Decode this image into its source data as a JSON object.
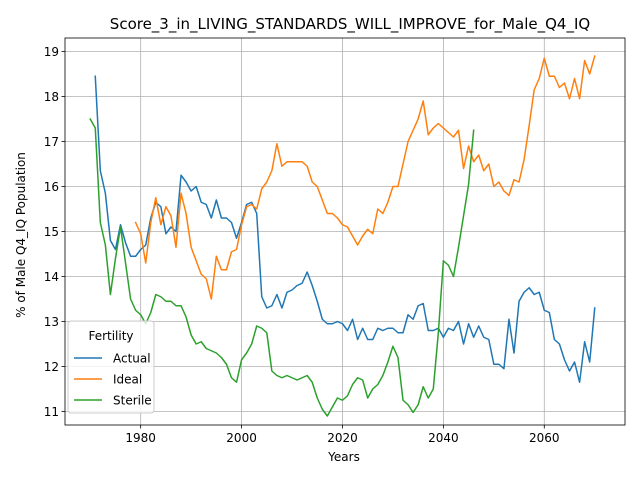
{
  "chart_data": {
    "type": "line",
    "title": "Score_3_in_LIVING_STANDARDS_WILL_IMPROVE_for_Male_Q4_IQ",
    "xlabel": "Years",
    "ylabel": "% of Male Q4_IQ Population",
    "xlim": [
      1965,
      2076
    ],
    "ylim": [
      10.7,
      19.3
    ],
    "xticks": [
      1980,
      2000,
      2020,
      2040,
      2060
    ],
    "yticks": [
      11,
      12,
      13,
      14,
      15,
      16,
      17,
      18,
      19
    ],
    "grid": true,
    "legend": {
      "title": "Fertility",
      "placement": "lower-left"
    },
    "series": [
      {
        "name": "Actual",
        "color": "#1f77b4",
        "x": [
          1971,
          1972,
          1973,
          1974,
          1975,
          1976,
          1977,
          1978,
          1979,
          1980,
          1981,
          1982,
          1983,
          1984,
          1985,
          1986,
          1987,
          1988,
          1989,
          1990,
          1991,
          1992,
          1993,
          1994,
          1995,
          1996,
          1997,
          1998,
          1999,
          2000,
          2001,
          2002,
          2003,
          2004,
          2005,
          2006,
          2007,
          2008,
          2009,
          2010,
          2011,
          2012,
          2013,
          2014,
          2015,
          2016,
          2017,
          2018,
          2019,
          2020,
          2021,
          2022,
          2023,
          2024,
          2025,
          2026,
          2027,
          2028,
          2029,
          2030,
          2031,
          2032,
          2033,
          2034,
          2035,
          2036,
          2037,
          2038,
          2039,
          2040,
          2041,
          2042,
          2043,
          2044,
          2045,
          2046,
          2047,
          2048,
          2049,
          2050,
          2051,
          2052,
          2053,
          2054,
          2055,
          2056,
          2057,
          2058,
          2059,
          2060,
          2061,
          2062,
          2063,
          2064,
          2065,
          2066,
          2067,
          2068,
          2069,
          2070
        ],
        "values": [
          18.45,
          16.35,
          15.85,
          14.8,
          14.6,
          15.15,
          14.75,
          14.45,
          14.45,
          14.6,
          14.7,
          15.3,
          15.65,
          15.55,
          14.95,
          15.1,
          15.0,
          16.25,
          16.1,
          15.9,
          16.0,
          15.65,
          15.6,
          15.3,
          15.7,
          15.3,
          15.3,
          15.2,
          14.85,
          15.2,
          15.6,
          15.65,
          15.4,
          13.55,
          13.3,
          13.35,
          13.6,
          13.3,
          13.65,
          13.7,
          13.8,
          13.85,
          14.1,
          13.8,
          13.45,
          13.05,
          12.95,
          12.95,
          13.0,
          12.95,
          12.8,
          13.05,
          12.6,
          12.85,
          12.6,
          12.6,
          12.85,
          12.8,
          12.85,
          12.85,
          12.75,
          12.75,
          13.15,
          13.05,
          13.35,
          13.4,
          12.8,
          12.8,
          12.85,
          12.65,
          12.85,
          12.8,
          13.0,
          12.5,
          12.95,
          12.65,
          12.9,
          12.65,
          12.6,
          12.05,
          12.05,
          11.95,
          13.05,
          12.3,
          13.45,
          13.65,
          13.75,
          13.6,
          13.65,
          13.25,
          13.2,
          12.6,
          12.5,
          12.15,
          11.9,
          12.1,
          11.65,
          12.55,
          12.1,
          13.3
        ]
      },
      {
        "name": "Ideal",
        "color": "#ff7f0e",
        "x": [
          1979,
          1980,
          1981,
          1982,
          1983,
          1984,
          1985,
          1986,
          1987,
          1988,
          1989,
          1990,
          1991,
          1992,
          1993,
          1994,
          1995,
          1996,
          1997,
          1998,
          1999,
          2000,
          2001,
          2002,
          2003,
          2004,
          2005,
          2006,
          2007,
          2008,
          2009,
          2010,
          2011,
          2012,
          2013,
          2014,
          2015,
          2016,
          2017,
          2018,
          2019,
          2020,
          2021,
          2022,
          2023,
          2024,
          2025,
          2026,
          2027,
          2028,
          2029,
          2030,
          2031,
          2032,
          2033,
          2034,
          2035,
          2036,
          2037,
          2038,
          2039,
          2040,
          2041,
          2042,
          2043,
          2044,
          2045,
          2046,
          2047,
          2048,
          2049,
          2050,
          2051,
          2052,
          2053,
          2054,
          2055,
          2056,
          2057,
          2058,
          2059,
          2060,
          2061,
          2062,
          2063,
          2064,
          2065,
          2066,
          2067,
          2068,
          2069,
          2070
        ],
        "values": [
          15.2,
          14.95,
          14.3,
          15.2,
          15.75,
          15.15,
          15.55,
          15.35,
          14.65,
          15.85,
          15.4,
          14.65,
          14.35,
          14.05,
          13.95,
          13.5,
          14.45,
          14.15,
          14.15,
          14.55,
          14.6,
          15.15,
          15.55,
          15.6,
          15.5,
          15.95,
          16.1,
          16.35,
          16.95,
          16.45,
          16.55,
          16.55,
          16.55,
          16.55,
          16.45,
          16.1,
          16.0,
          15.7,
          15.4,
          15.4,
          15.3,
          15.15,
          15.1,
          14.9,
          14.7,
          14.9,
          15.05,
          14.95,
          15.5,
          15.4,
          15.65,
          16.0,
          16.0,
          16.5,
          17.0,
          17.25,
          17.5,
          17.9,
          17.15,
          17.3,
          17.4,
          17.3,
          17.2,
          17.1,
          17.25,
          16.4,
          16.9,
          16.55,
          16.7,
          16.35,
          16.5,
          16.0,
          16.1,
          15.9,
          15.8,
          16.15,
          16.1,
          16.6,
          17.35,
          18.15,
          18.4,
          18.85,
          18.45,
          18.45,
          18.2,
          18.3,
          17.95,
          18.4,
          17.95,
          18.8,
          18.5,
          18.9
        ]
      },
      {
        "name": "Sterile",
        "color": "#2ca02c",
        "x": [
          1970,
          1971,
          1972,
          1973,
          1974,
          1975,
          1976,
          1977,
          1978,
          1979,
          1980,
          1981,
          1982,
          1983,
          1984,
          1985,
          1986,
          1987,
          1988,
          1989,
          1990,
          1991,
          1992,
          1993,
          1994,
          1995,
          1996,
          1997,
          1998,
          1999,
          2000,
          2001,
          2002,
          2003,
          2004,
          2005,
          2006,
          2007,
          2008,
          2009,
          2010,
          2011,
          2012,
          2013,
          2014,
          2015,
          2016,
          2017,
          2018,
          2019,
          2020,
          2021,
          2022,
          2023,
          2024,
          2025,
          2026,
          2027,
          2028,
          2029,
          2030,
          2031,
          2032,
          2033,
          2034,
          2035,
          2036,
          2037,
          2038,
          2039,
          2040,
          2041,
          2042,
          2043,
          2044,
          2045,
          2046
        ],
        "values": [
          17.5,
          17.3,
          15.2,
          14.7,
          13.6,
          14.4,
          15.1,
          14.3,
          13.5,
          13.25,
          13.15,
          12.95,
          13.2,
          13.6,
          13.55,
          13.45,
          13.45,
          13.35,
          13.35,
          13.1,
          12.7,
          12.5,
          12.55,
          12.4,
          12.35,
          12.3,
          12.2,
          12.05,
          11.75,
          11.65,
          12.15,
          12.3,
          12.5,
          12.9,
          12.85,
          12.75,
          11.9,
          11.8,
          11.75,
          11.8,
          11.75,
          11.7,
          11.75,
          11.8,
          11.65,
          11.3,
          11.05,
          10.9,
          11.1,
          11.3,
          11.25,
          11.35,
          11.6,
          11.75,
          11.7,
          11.3,
          11.5,
          11.6,
          11.8,
          12.1,
          12.45,
          12.2,
          11.25,
          11.15,
          10.98,
          11.15,
          11.55,
          11.3,
          11.5,
          12.75,
          14.35,
          14.25,
          14.0,
          14.65,
          15.35,
          16.05,
          17.25
        ]
      }
    ]
  }
}
